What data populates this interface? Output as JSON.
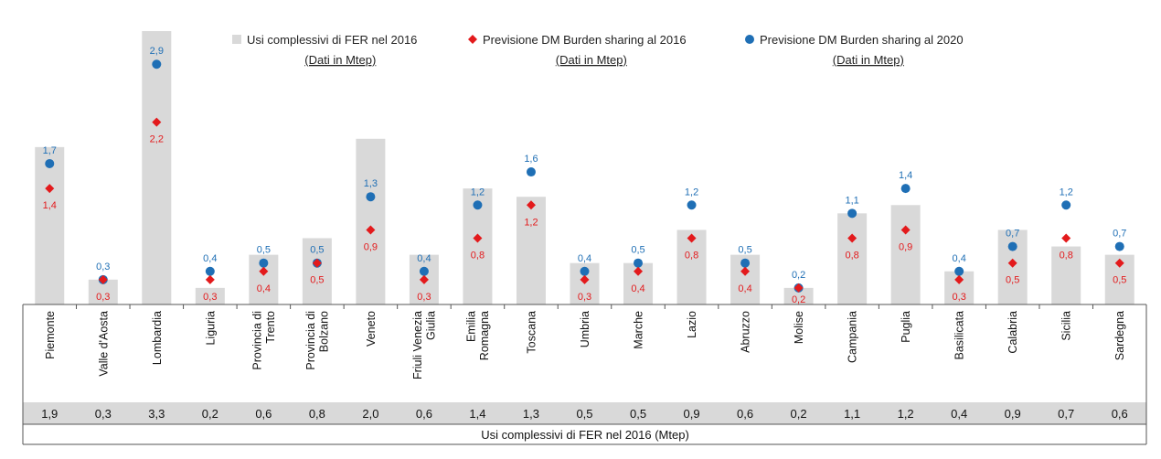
{
  "chart_data": {
    "type": "bar",
    "categories": [
      "Piemonte",
      "Valle d'Aosta",
      "Lombardia",
      "Liguria",
      "Provincia di Trento",
      "Provincia di Bolzano",
      "Veneto",
      "Friuli Venezia Giulia",
      "Emilia Romagna",
      "Toscana",
      "Umbria",
      "Marche",
      "Lazio",
      "Abruzzo",
      "Molise",
      "Campania",
      "Puglia",
      "Basilicata",
      "Calabria",
      "Sicilia",
      "Sardegna"
    ],
    "category_lines": [
      [
        "Piemonte"
      ],
      [
        "Valle d'Aosta"
      ],
      [
        "Lombardia"
      ],
      [
        "Liguria"
      ],
      [
        "Provincia di",
        "Trento"
      ],
      [
        "Provincia di",
        "Bolzano"
      ],
      [
        "Veneto"
      ],
      [
        "Friuli Venezia",
        "Giulia"
      ],
      [
        "Emilia",
        "Romagna"
      ],
      [
        "Toscana"
      ],
      [
        "Umbria"
      ],
      [
        "Marche"
      ],
      [
        "Lazio"
      ],
      [
        "Abruzzo"
      ],
      [
        "Molise"
      ],
      [
        "Campania"
      ],
      [
        "Puglia"
      ],
      [
        "Basilicata"
      ],
      [
        "Calabria"
      ],
      [
        "Sicilia"
      ],
      [
        "Sardegna"
      ]
    ],
    "series": [
      {
        "name": "Usi complessivi di FER nel 2016",
        "kind": "bar",
        "color": "#d9d9d9",
        "values": [
          1.9,
          0.3,
          3.3,
          0.2,
          0.6,
          0.8,
          2.0,
          0.6,
          1.4,
          1.3,
          0.5,
          0.5,
          0.9,
          0.6,
          0.2,
          1.1,
          1.2,
          0.4,
          0.9,
          0.7,
          0.6
        ],
        "labels": [
          "1,9",
          "0,3",
          "3,3",
          "0,2",
          "0,6",
          "0,8",
          "2,0",
          "0,6",
          "1,4",
          "1,3",
          "0,5",
          "0,5",
          "0,9",
          "0,6",
          "0,2",
          "1,1",
          "1,2",
          "0,4",
          "0,9",
          "0,7",
          "0,6"
        ]
      },
      {
        "name": "Previsione DM Burden sharing al 2016",
        "kind": "diamond",
        "color": "#e31a1c",
        "values": [
          1.4,
          0.3,
          2.2,
          0.3,
          0.4,
          0.5,
          0.9,
          0.3,
          0.8,
          1.2,
          0.3,
          0.4,
          0.8,
          0.4,
          0.2,
          0.8,
          0.9,
          0.3,
          0.5,
          0.8,
          0.5
        ],
        "labels": [
          "1,4",
          "0,3",
          "2,2",
          "0,3",
          "0,4",
          "0,5",
          "0,9",
          "0,3",
          "0,8",
          "1,2",
          "0,3",
          "0,4",
          "0,8",
          "0,4",
          "0,2",
          "0,8",
          "0,9",
          "0,3",
          "0,5",
          "0,8",
          "0,5"
        ]
      },
      {
        "name": "Previsione DM Burden sharing al 2020",
        "kind": "circle",
        "color": "#1f6fb5",
        "values": [
          1.7,
          0.3,
          2.9,
          0.4,
          0.5,
          0.5,
          1.3,
          0.4,
          1.2,
          1.6,
          0.4,
          0.5,
          1.2,
          0.5,
          0.2,
          1.1,
          1.4,
          0.4,
          0.7,
          1.2,
          0.7
        ],
        "labels": [
          "1,7",
          "0,3",
          "2,9",
          "0,4",
          "0,5",
          "0,5",
          "1,3",
          "0,4",
          "1,2",
          "1,6",
          "0,4",
          "0,5",
          "1,2",
          "0,5",
          "0,2",
          "1,1",
          "1,4",
          "0,4",
          "0,7",
          "1,2",
          "0,7"
        ]
      }
    ],
    "legend": {
      "position": "top",
      "items": [
        {
          "label": "Usi complessivi di FER nel 2016",
          "sub": "(Dati in Mtep)"
        },
        {
          "label": "Previsione DM Burden sharing al 2016",
          "sub": "(Dati in Mtep)"
        },
        {
          "label": "Previsione DM Burden sharing al 2020",
          "sub": "(Dati in Mtep)"
        }
      ]
    },
    "table": {
      "row_values": [
        "1,9",
        "0,3",
        "3,3",
        "0,2",
        "0,6",
        "0,8",
        "2,0",
        "0,6",
        "1,4",
        "1,3",
        "0,5",
        "0,5",
        "0,9",
        "0,6",
        "0,2",
        "1,1",
        "1,2",
        "0,4",
        "0,9",
        "0,7",
        "0,6"
      ],
      "footer": "Usi complessivi di FER nel 2016  (Mtep)"
    },
    "ylim": [
      0,
      3.3
    ],
    "grid": false
  }
}
